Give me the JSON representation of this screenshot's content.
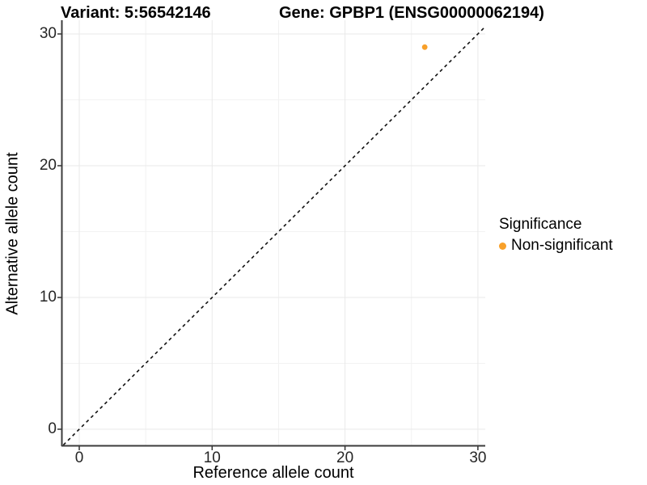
{
  "chart_data": {
    "type": "scatter",
    "title_left": "Variant: 5:56542146",
    "title_right": "Gene: GPBP1 (ENSG00000062194)",
    "xlabel": "Reference allele count",
    "ylabel": "Alternative allele count",
    "x_ticks": [
      0,
      10,
      20,
      30
    ],
    "y_ticks": [
      0,
      10,
      20,
      30
    ],
    "x_minor_ticks": [
      5,
      15,
      25
    ],
    "y_minor_ticks": [
      5,
      15,
      25
    ],
    "xlim": [
      -1.4,
      30.6
    ],
    "ylim": [
      -1.4,
      31.1
    ],
    "grid": true,
    "points": [
      {
        "x": 26,
        "y": 29,
        "series": "Non-significant"
      }
    ],
    "abline": {
      "slope": 1,
      "intercept": 0,
      "style": "dashed"
    },
    "legend": {
      "position": "right",
      "title": "Significance",
      "items": [
        {
          "label": "Non-significant",
          "color": "#F8A029"
        }
      ]
    },
    "colors": {
      "point": "#F8A029",
      "abline": "#111111",
      "axis_line": "#3C3C3C",
      "tick_mark": "#333333",
      "grid_major": "#E9E9E9",
      "grid_minor": "#F2F2F2",
      "background": "#FFFFFF",
      "text": "#000000"
    }
  }
}
